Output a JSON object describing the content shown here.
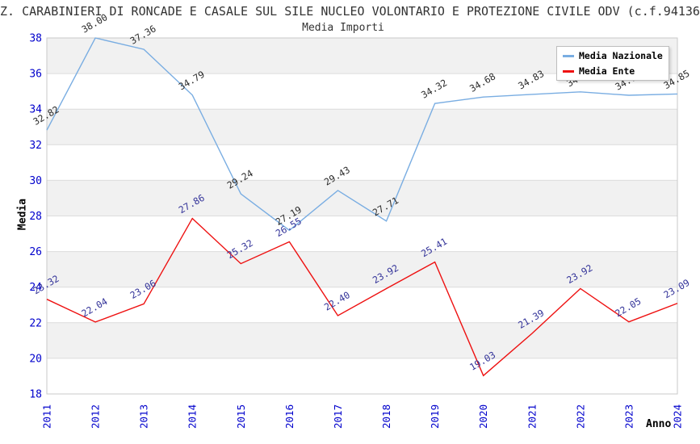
{
  "header": {
    "title": "Z. CARABINIERI DI RONCADE E CASALE SUL SILE NUCLEO VOLONTARIO E PROTEZIONE CIVILE ODV (c.f.94136",
    "subtitle": "Media Importi"
  },
  "chart_data": {
    "type": "line",
    "title": "Media Importi",
    "x": [
      "2011",
      "2012",
      "2013",
      "2014",
      "2015",
      "2016",
      "2017",
      "2018",
      "2019",
      "2020",
      "2021",
      "2022",
      "2023",
      "2024"
    ],
    "xlabel": "Anno",
    "ylabel": "Media",
    "ylim": [
      18,
      38
    ],
    "ytick_step": 2,
    "yticks": [
      18,
      20,
      22,
      24,
      26,
      28,
      30,
      32,
      34,
      36,
      38
    ],
    "grid": "alternating horizontal bands with light gridlines",
    "legend_position": "top-right",
    "series": [
      {
        "name": "Media Nazionale",
        "color": "#79ade2",
        "label_color": "#2b2b2b",
        "values": [
          32.82,
          38.0,
          37.36,
          34.79,
          29.24,
          27.19,
          29.43,
          27.71,
          34.32,
          34.68,
          34.83,
          34.97,
          34.78,
          34.85
        ]
      },
      {
        "name": "Media Ente",
        "color": "#ee1111",
        "label_color": "#333399",
        "values": [
          23.32,
          22.04,
          23.06,
          27.86,
          25.32,
          26.55,
          22.4,
          23.92,
          25.41,
          19.03,
          21.39,
          23.92,
          22.05,
          23.09
        ]
      }
    ],
    "colors": {
      "tick_label": "#0000cc",
      "band_gray": "#f1f1f1",
      "band_white": "#ffffff",
      "gridline": "#dcdcdc",
      "plot_border": "#c9c9c9",
      "title_text": "#333333"
    }
  }
}
